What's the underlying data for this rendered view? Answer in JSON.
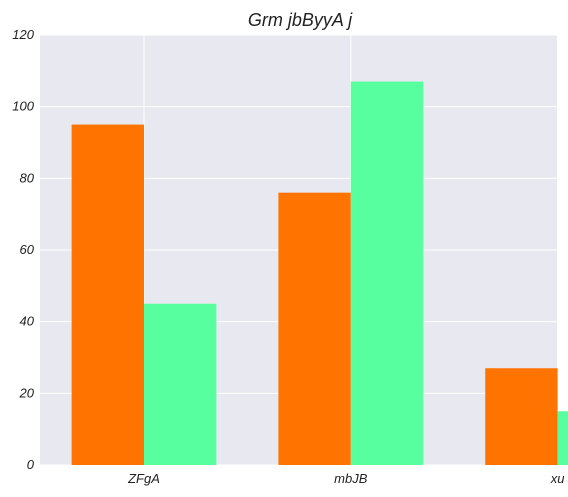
{
  "chart_data": {
    "type": "bar",
    "title": "Grm jbByyA j",
    "xlabel": "",
    "ylabel": "",
    "categories": [
      "ZFgA",
      "mbJB",
      "xu"
    ],
    "series": [
      {
        "values": [
          95,
          76,
          27
        ],
        "color": "#ff7300"
      },
      {
        "values": [
          45,
          107,
          15
        ],
        "color": "#57ff9e"
      }
    ],
    "ylim": [
      0,
      120
    ],
    "yticks": [
      0,
      20,
      40,
      60,
      80,
      100,
      120
    ],
    "grid": true,
    "background": "#e8e8f0"
  }
}
